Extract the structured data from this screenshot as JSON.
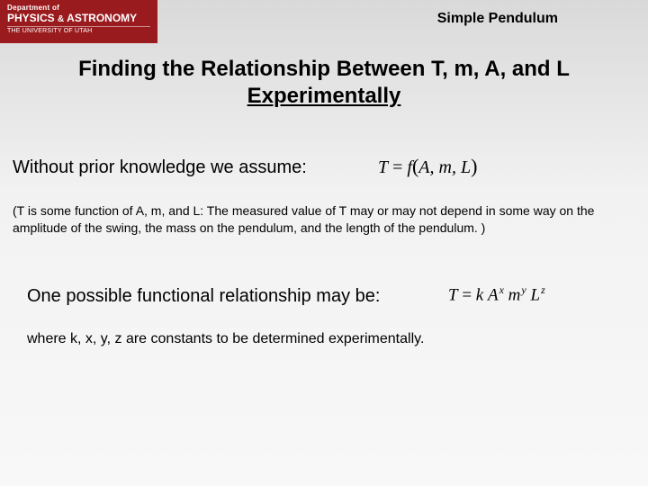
{
  "logo": {
    "dept": "Department of",
    "main_line1": "PHYSICS",
    "amp": "&",
    "main_line2": "ASTRONOMY",
    "univ": "THE UNIVERSITY OF UTAH"
  },
  "header": {
    "topic": "Simple Pendulum"
  },
  "title": {
    "line1": "Finding the Relationship Between T, m, A, and L",
    "line2_underlined": "Experimentally"
  },
  "body": {
    "assume": "Without prior knowledge we assume:",
    "formula1_T": "T",
    "formula1_eq": " = ",
    "formula1_f": "f",
    "formula1_args": "A, m, L",
    "paren_note": "(T is some function of A, m, and L: The measured value of T may or may not depend in some way on the amplitude of the swing, the mass on the pendulum, and the length of the pendulum. )",
    "possible": "One possible functional relationship may be:",
    "formula2_T": "T",
    "formula2_eq": " = ",
    "formula2_k": "k",
    "formula2_A": "A",
    "formula2_x": "x",
    "formula2_m": "m",
    "formula2_y": "y",
    "formula2_L": "L",
    "formula2_z": "z",
    "where": "where k, x, y, z are constants to be determined experimentally."
  },
  "colors": {
    "logo_bg": "#9a1b1e",
    "logo_text": "#ffffff",
    "body_text": "#000000",
    "bg_top": "#d9d9d9",
    "bg_bottom": "#f8f8f8"
  }
}
